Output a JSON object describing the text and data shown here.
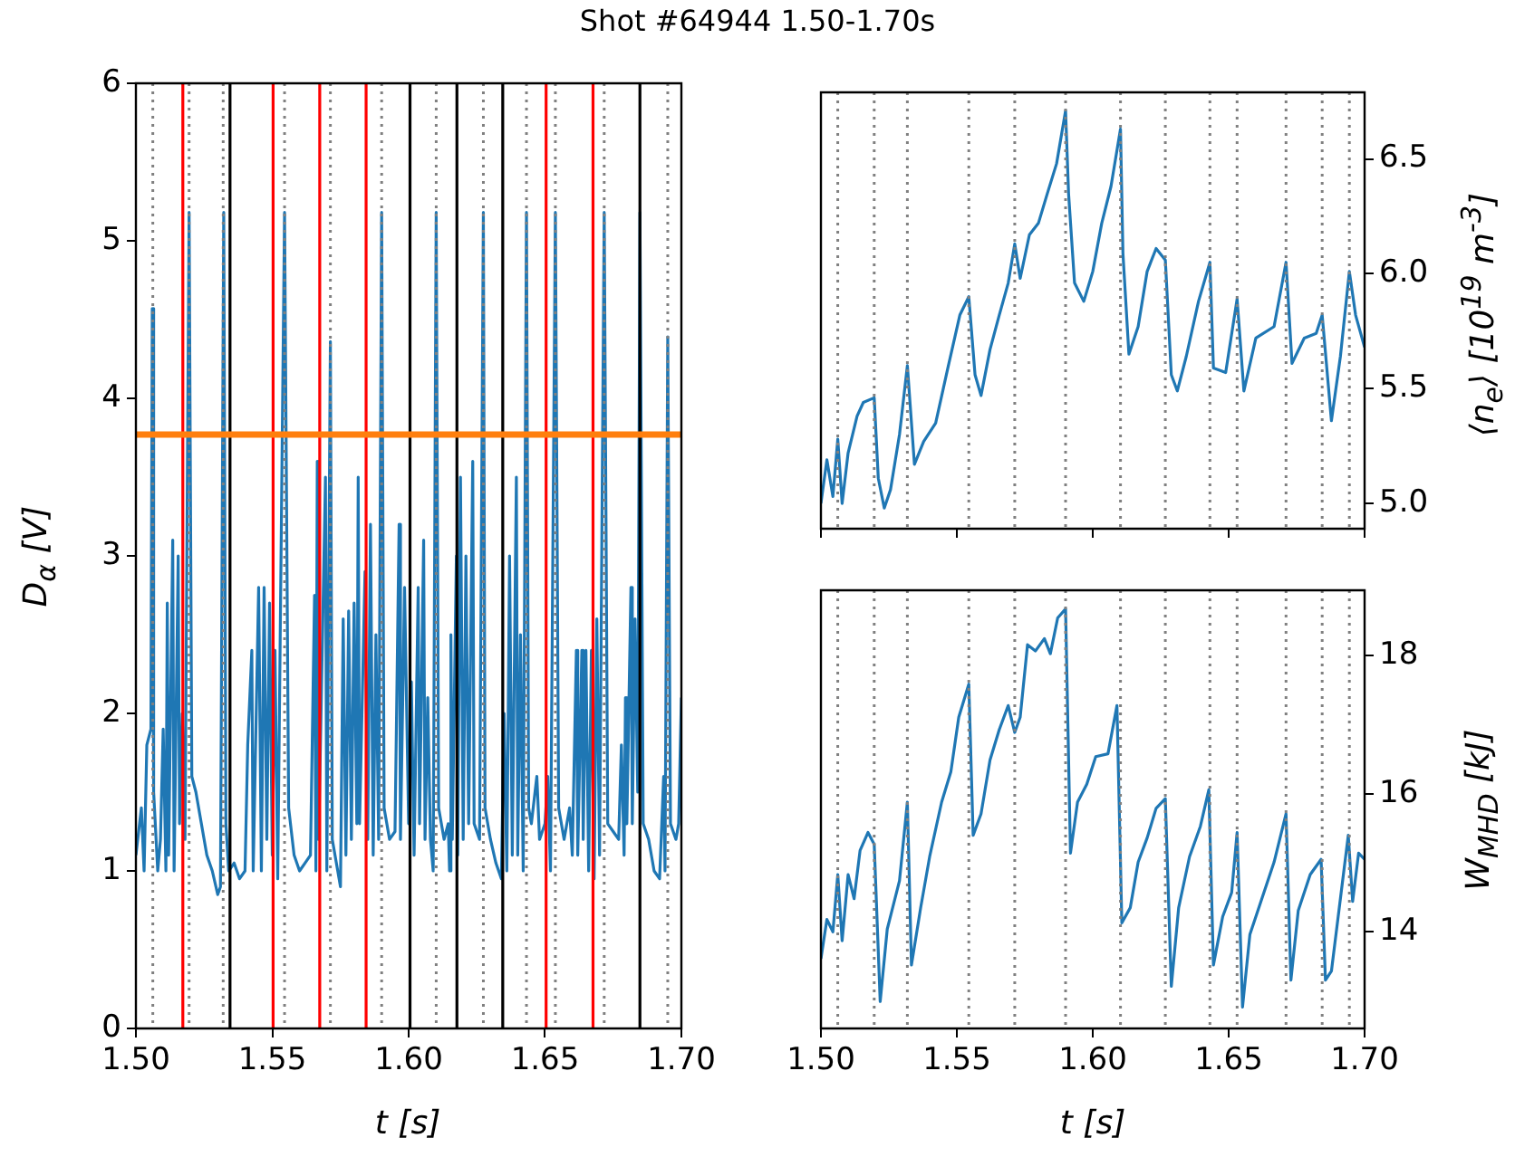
{
  "chart_data": [
    {
      "type": "line",
      "title": "Shot #64944 1.50-1.70s",
      "xlabel": "t [s]",
      "ylabel": "D$_{α}$ [V]",
      "color": "#1f77b4",
      "legend": false,
      "grid": false,
      "marker": "none",
      "xlim": [
        1.5,
        1.7
      ],
      "xticks": [
        {
          "value": 1.5,
          "label": "1.50"
        },
        {
          "value": 1.55,
          "label": "1.55"
        },
        {
          "value": 1.6,
          "label": "1.60"
        },
        {
          "value": 1.65,
          "label": "1.65"
        },
        {
          "value": 1.7,
          "label": "1.70"
        }
      ],
      "ylim": [
        0,
        6
      ],
      "yticks": [
        0,
        1,
        2,
        3,
        4,
        5,
        6
      ],
      "x": [
        1.5,
        1.502,
        1.503,
        1.504,
        1.5055,
        1.506,
        1.5065,
        1.508,
        1.509,
        1.51,
        1.511,
        1.5115,
        1.512,
        1.5135,
        1.514,
        1.5155,
        1.516,
        1.517,
        1.518,
        1.5195,
        1.5205,
        1.522,
        1.524,
        1.526,
        1.528,
        1.53,
        1.531,
        1.5322,
        1.533,
        1.534,
        1.536,
        1.538,
        1.54,
        1.541,
        1.5425,
        1.543,
        1.545,
        1.546,
        1.547,
        1.548,
        1.549,
        1.55,
        1.551,
        1.552,
        1.5545,
        1.556,
        1.558,
        1.56,
        1.562,
        1.564,
        1.5655,
        1.566,
        1.5665,
        1.567,
        1.5695,
        1.57,
        1.5713,
        1.572,
        1.574,
        1.575,
        1.576,
        1.577,
        1.578,
        1.579,
        1.58,
        1.581,
        1.5815,
        1.582,
        1.584,
        1.585,
        1.586,
        1.587,
        1.588,
        1.589,
        1.5901,
        1.591,
        1.593,
        1.595,
        1.5965,
        1.597,
        1.5985,
        1.6,
        1.601,
        1.602,
        1.6035,
        1.604,
        1.6055,
        1.606,
        1.607,
        1.608,
        1.609,
        1.6101,
        1.611,
        1.613,
        1.6145,
        1.615,
        1.6155,
        1.616,
        1.6175,
        1.618,
        1.619,
        1.62,
        1.621,
        1.622,
        1.6235,
        1.624,
        1.626,
        1.6274,
        1.628,
        1.63,
        1.632,
        1.634,
        1.635,
        1.636,
        1.637,
        1.638,
        1.6395,
        1.64,
        1.641,
        1.642,
        1.6432,
        1.644,
        1.645,
        1.647,
        1.648,
        1.65,
        1.651,
        1.652,
        1.6538,
        1.655,
        1.657,
        1.659,
        1.66,
        1.6615,
        1.662,
        1.6635,
        1.664,
        1.665,
        1.666,
        1.667,
        1.668,
        1.669,
        1.67,
        1.6717,
        1.673,
        1.675,
        1.677,
        1.678,
        1.679,
        1.6795,
        1.68,
        1.6815,
        1.682,
        1.683,
        1.684,
        1.6848,
        1.686,
        1.688,
        1.69,
        1.692,
        1.6935,
        1.694,
        1.695,
        1.696,
        1.698,
        1.699,
        1.7
      ],
      "values": [
        1.1,
        1.4,
        1.0,
        1.8,
        1.9,
        4.57,
        1.5,
        1.0,
        1.2,
        1.9,
        1.0,
        2.7,
        1.1,
        3.1,
        1.0,
        3.0,
        1.3,
        2.0,
        1.2,
        5.18,
        1.6,
        1.5,
        1.3,
        1.1,
        1.0,
        0.85,
        0.9,
        5.18,
        1.3,
        1.0,
        1.05,
        0.95,
        1.0,
        1.8,
        2.4,
        1.0,
        2.8,
        1.0,
        2.8,
        1.2,
        2.7,
        1.1,
        2.4,
        0.95,
        5.18,
        1.4,
        1.1,
        1.0,
        1.05,
        1.1,
        2.75,
        1.0,
        3.6,
        1.2,
        3.5,
        1.0,
        4.36,
        1.2,
        1.0,
        0.9,
        2.6,
        1.1,
        2.65,
        1.2,
        2.7,
        1.3,
        3.5,
        1.3,
        2.9,
        1.2,
        3.2,
        1.1,
        2.5,
        1.2,
        5.18,
        1.4,
        1.2,
        1.25,
        3.2,
        1.2,
        2.8,
        1.3,
        2.2,
        1.1,
        2.8,
        1.3,
        3.1,
        1.2,
        2.1,
        1.2,
        1.0,
        5.18,
        1.4,
        1.2,
        1.3,
        1.0,
        2.5,
        1.2,
        3.0,
        1.1,
        3.5,
        1.2,
        3.0,
        1.3,
        3.6,
        1.3,
        1.2,
        5.18,
        1.4,
        1.2,
        1.05,
        0.95,
        2.0,
        1.0,
        3.0,
        1.1,
        3.5,
        1.1,
        2.5,
        1.0,
        5.18,
        1.4,
        1.3,
        1.6,
        1.2,
        1.3,
        1.6,
        1.0,
        5.18,
        1.4,
        1.2,
        1.4,
        1.1,
        2.4,
        1.1,
        2.4,
        1.2,
        2.4,
        1.0,
        2.4,
        0.95,
        2.6,
        1.1,
        5.18,
        1.3,
        1.25,
        1.2,
        1.8,
        1.1,
        2.1,
        1.3,
        2.8,
        1.3,
        2.6,
        1.5,
        5.18,
        1.3,
        1.2,
        1.0,
        0.95,
        1.6,
        1.0,
        4.39,
        1.3,
        1.2,
        1.3,
        2.1
      ],
      "ref_lines": [
        {
          "axis": "x",
          "value": 1.5345,
          "color": "#000000",
          "line_style": "solid"
        },
        {
          "axis": "x",
          "value": 1.6005,
          "color": "#000000",
          "line_style": "solid"
        },
        {
          "axis": "x",
          "value": 1.6177,
          "color": "#000000",
          "line_style": "solid"
        },
        {
          "axis": "x",
          "value": 1.6345,
          "color": "#000000",
          "line_style": "solid"
        },
        {
          "axis": "x",
          "value": 1.6848,
          "color": "#000000",
          "line_style": "solid"
        },
        {
          "axis": "x",
          "value": 1.5172,
          "color": "#ff0000",
          "line_style": "solid"
        },
        {
          "axis": "x",
          "value": 1.5503,
          "color": "#ff0000",
          "line_style": "solid"
        },
        {
          "axis": "x",
          "value": 1.5674,
          "color": "#ff0000",
          "line_style": "solid"
        },
        {
          "axis": "x",
          "value": 1.5844,
          "color": "#ff0000",
          "line_style": "solid"
        },
        {
          "axis": "x",
          "value": 1.6504,
          "color": "#ff0000",
          "line_style": "solid"
        },
        {
          "axis": "x",
          "value": 1.6676,
          "color": "#ff0000",
          "line_style": "solid"
        },
        {
          "axis": "x",
          "value": 1.5062,
          "color": "#808080",
          "line_style": "dotted"
        },
        {
          "axis": "x",
          "value": 1.5195,
          "color": "#808080",
          "line_style": "dotted"
        },
        {
          "axis": "x",
          "value": 1.532,
          "color": "#808080",
          "line_style": "dotted"
        },
        {
          "axis": "x",
          "value": 1.5545,
          "color": "#808080",
          "line_style": "dotted"
        },
        {
          "axis": "x",
          "value": 1.5713,
          "color": "#808080",
          "line_style": "dotted"
        },
        {
          "axis": "x",
          "value": 1.5901,
          "color": "#808080",
          "line_style": "dotted"
        },
        {
          "axis": "x",
          "value": 1.6101,
          "color": "#808080",
          "line_style": "dotted"
        },
        {
          "axis": "x",
          "value": 1.6274,
          "color": "#808080",
          "line_style": "dotted"
        },
        {
          "axis": "x",
          "value": 1.6432,
          "color": "#808080",
          "line_style": "dotted"
        },
        {
          "axis": "x",
          "value": 1.6538,
          "color": "#808080",
          "line_style": "dotted"
        },
        {
          "axis": "x",
          "value": 1.6717,
          "color": "#808080",
          "line_style": "dotted"
        },
        {
          "axis": "x",
          "value": 1.695,
          "color": "#808080",
          "line_style": "dotted"
        },
        {
          "axis": "y",
          "value": 3.77,
          "color": "#ff7f0e",
          "line_style": "solid"
        }
      ]
    },
    {
      "type": "line",
      "ylabel": "⟨n$_{e}$⟩ [10$^{19}$ m$^{-3}$]",
      "color": "#1f77b4",
      "legend": false,
      "grid": false,
      "marker": "none",
      "tick_labels": "y",
      "xlim": [
        1.5,
        1.7
      ],
      "xticks": [
        {
          "value": 1.5,
          "label": null
        },
        {
          "value": 1.55,
          "label": null
        },
        {
          "value": 1.6,
          "label": null
        },
        {
          "value": 1.65,
          "label": null
        },
        {
          "value": 1.7,
          "label": null
        }
      ],
      "ylim": [
        4.89,
        6.79
      ],
      "yticks": [
        {
          "value": 5,
          "label": "5.0"
        },
        {
          "value": 5.5,
          "label": "5.5"
        },
        {
          "value": 6,
          "label": "6.0"
        },
        {
          "value": 6.5,
          "label": "6.5"
        }
      ],
      "x": [
        1.5,
        1.5022,
        1.5044,
        1.5062,
        1.5078,
        1.51,
        1.5133,
        1.5156,
        1.5196,
        1.5211,
        1.5233,
        1.5256,
        1.5289,
        1.5318,
        1.5344,
        1.5378,
        1.5422,
        1.5467,
        1.5511,
        1.5544,
        1.5567,
        1.5589,
        1.5622,
        1.5656,
        1.5689,
        1.5713,
        1.5733,
        1.5767,
        1.58,
        1.5833,
        1.5867,
        1.59,
        1.5911,
        1.5933,
        1.5967,
        1.6,
        1.6033,
        1.6067,
        1.6102,
        1.6111,
        1.6133,
        1.6167,
        1.62,
        1.6233,
        1.6267,
        1.6289,
        1.6311,
        1.6344,
        1.6389,
        1.6431,
        1.6444,
        1.6489,
        1.6531,
        1.6556,
        1.66,
        1.6667,
        1.6711,
        1.6733,
        1.6778,
        1.6822,
        1.6844,
        1.6878,
        1.6911,
        1.6944,
        1.6967,
        1.7
      ],
      "values": [
        5.0,
        5.19,
        5.03,
        5.28,
        5.0,
        5.22,
        5.38,
        5.44,
        5.46,
        5.11,
        4.98,
        5.06,
        5.3,
        5.6,
        5.17,
        5.27,
        5.35,
        5.59,
        5.82,
        5.9,
        5.56,
        5.47,
        5.67,
        5.82,
        5.96,
        6.13,
        5.98,
        6.17,
        6.22,
        6.35,
        6.48,
        6.71,
        6.35,
        5.96,
        5.88,
        6.01,
        6.22,
        6.38,
        6.63,
        6.09,
        5.65,
        5.77,
        6.01,
        6.11,
        6.06,
        5.56,
        5.49,
        5.64,
        5.88,
        6.05,
        5.59,
        5.57,
        5.89,
        5.49,
        5.72,
        5.77,
        6.05,
        5.61,
        5.72,
        5.74,
        5.82,
        5.36,
        5.64,
        6.01,
        5.82,
        5.68
      ],
      "ref_lines": [
        {
          "axis": "x",
          "value": 1.5062,
          "color": "#808080",
          "line_style": "dotted"
        },
        {
          "axis": "x",
          "value": 1.5196,
          "color": "#808080",
          "line_style": "dotted"
        },
        {
          "axis": "x",
          "value": 1.5318,
          "color": "#808080",
          "line_style": "dotted"
        },
        {
          "axis": "x",
          "value": 1.5544,
          "color": "#808080",
          "line_style": "dotted"
        },
        {
          "axis": "x",
          "value": 1.5713,
          "color": "#808080",
          "line_style": "dotted"
        },
        {
          "axis": "x",
          "value": 1.59,
          "color": "#808080",
          "line_style": "dotted"
        },
        {
          "axis": "x",
          "value": 1.6102,
          "color": "#808080",
          "line_style": "dotted"
        },
        {
          "axis": "x",
          "value": 1.6267,
          "color": "#808080",
          "line_style": "dotted"
        },
        {
          "axis": "x",
          "value": 1.6431,
          "color": "#808080",
          "line_style": "dotted"
        },
        {
          "axis": "x",
          "value": 1.6531,
          "color": "#808080",
          "line_style": "dotted"
        },
        {
          "axis": "x",
          "value": 1.6711,
          "color": "#808080",
          "line_style": "dotted"
        },
        {
          "axis": "x",
          "value": 1.6844,
          "color": "#808080",
          "line_style": "dotted"
        },
        {
          "axis": "x",
          "value": 1.6944,
          "color": "#808080",
          "line_style": "dotted"
        }
      ]
    },
    {
      "type": "line",
      "xlabel": "t [s]",
      "ylabel": "W$_{MHD}$ [kJ]",
      "color": "#1f77b4",
      "legend": false,
      "grid": false,
      "marker": "none",
      "xlim": [
        1.5,
        1.7
      ],
      "xticks": [
        {
          "value": 1.5,
          "label": "1.50"
        },
        {
          "value": 1.55,
          "label": "1.55"
        },
        {
          "value": 1.6,
          "label": "1.60"
        },
        {
          "value": 1.65,
          "label": "1.65"
        },
        {
          "value": 1.7,
          "label": "1.70"
        }
      ],
      "ylim": [
        12.6,
        18.95
      ],
      "yticks": [
        14,
        16,
        18
      ],
      "x": [
        1.5,
        1.5022,
        1.5044,
        1.5062,
        1.5078,
        1.51,
        1.5122,
        1.5144,
        1.5173,
        1.5196,
        1.5218,
        1.5244,
        1.5289,
        1.5318,
        1.5333,
        1.5367,
        1.54,
        1.5444,
        1.5478,
        1.5507,
        1.5544,
        1.556,
        1.5589,
        1.5622,
        1.5656,
        1.5689,
        1.5713,
        1.5733,
        1.576,
        1.5789,
        1.5822,
        1.5844,
        1.5871,
        1.59,
        1.5918,
        1.5944,
        1.5978,
        1.6011,
        1.6056,
        1.6089,
        1.6107,
        1.6138,
        1.6167,
        1.62,
        1.6233,
        1.6267,
        1.6289,
        1.6316,
        1.6356,
        1.6396,
        1.6427,
        1.6444,
        1.6478,
        1.6511,
        1.6531,
        1.6551,
        1.6578,
        1.6622,
        1.6667,
        1.6711,
        1.6729,
        1.6756,
        1.68,
        1.684,
        1.6856,
        1.6878,
        1.6911,
        1.694,
        1.6956,
        1.6978,
        1.7
      ],
      "values": [
        13.61,
        14.18,
        14.0,
        14.83,
        13.87,
        14.83,
        14.48,
        15.18,
        15.44,
        15.27,
        12.99,
        14.04,
        14.74,
        15.88,
        13.52,
        14.35,
        15.09,
        15.88,
        16.32,
        17.11,
        17.59,
        15.4,
        15.71,
        16.49,
        16.93,
        17.28,
        16.89,
        17.11,
        18.16,
        18.07,
        18.25,
        18.03,
        18.55,
        18.68,
        15.14,
        15.88,
        16.14,
        16.54,
        16.58,
        17.28,
        14.13,
        14.35,
        15.01,
        15.36,
        15.79,
        15.93,
        13.21,
        14.35,
        15.09,
        15.53,
        16.06,
        13.52,
        14.22,
        14.57,
        15.44,
        12.91,
        13.96,
        14.48,
        15.01,
        15.71,
        13.3,
        14.31,
        14.83,
        15.05,
        13.3,
        13.43,
        14.48,
        15.4,
        14.44,
        15.14,
        15.05
      ],
      "ref_lines": [
        {
          "axis": "x",
          "value": 1.5062,
          "color": "#808080",
          "line_style": "dotted"
        },
        {
          "axis": "x",
          "value": 1.5196,
          "color": "#808080",
          "line_style": "dotted"
        },
        {
          "axis": "x",
          "value": 1.5318,
          "color": "#808080",
          "line_style": "dotted"
        },
        {
          "axis": "x",
          "value": 1.5544,
          "color": "#808080",
          "line_style": "dotted"
        },
        {
          "axis": "x",
          "value": 1.5713,
          "color": "#808080",
          "line_style": "dotted"
        },
        {
          "axis": "x",
          "value": 1.59,
          "color": "#808080",
          "line_style": "dotted"
        },
        {
          "axis": "x",
          "value": 1.6102,
          "color": "#808080",
          "line_style": "dotted"
        },
        {
          "axis": "x",
          "value": 1.6267,
          "color": "#808080",
          "line_style": "dotted"
        },
        {
          "axis": "x",
          "value": 1.6431,
          "color": "#808080",
          "line_style": "dotted"
        },
        {
          "axis": "x",
          "value": 1.6531,
          "color": "#808080",
          "line_style": "dotted"
        },
        {
          "axis": "x",
          "value": 1.6711,
          "color": "#808080",
          "line_style": "dotted"
        },
        {
          "axis": "x",
          "value": 1.6844,
          "color": "#808080",
          "line_style": "dotted"
        },
        {
          "axis": "x",
          "value": 1.6944,
          "color": "#808080",
          "line_style": "dotted"
        }
      ]
    }
  ]
}
